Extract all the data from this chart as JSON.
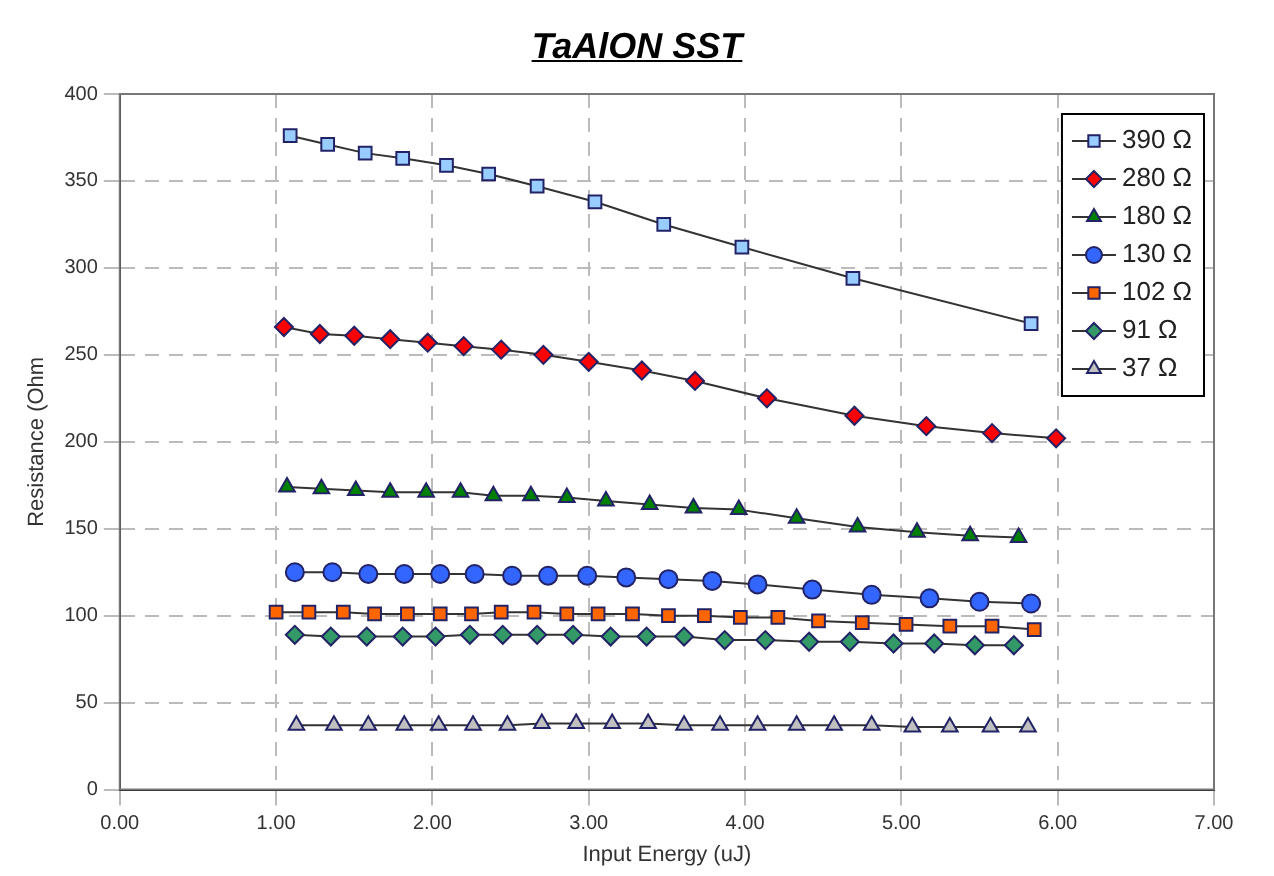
{
  "chart_data": {
    "type": "line",
    "title": "TaAlON SST",
    "xlabel": "Input Energy (uJ)",
    "ylabel": "Resistance (Ohm",
    "xlim": [
      0,
      7
    ],
    "xticks": [
      {
        "value": 0,
        "label": "0.00"
      },
      {
        "value": 1,
        "label": "1.00"
      },
      {
        "value": 2,
        "label": "2.00"
      },
      {
        "value": 3,
        "label": "3.00"
      },
      {
        "value": 4,
        "label": "4.00"
      },
      {
        "value": 5,
        "label": "5.00"
      },
      {
        "value": 6,
        "label": "6.00"
      },
      {
        "value": 7,
        "label": "7.00"
      }
    ],
    "ylim": [
      0,
      400
    ],
    "yticks": [
      0,
      50,
      100,
      150,
      200,
      250,
      300,
      350,
      400
    ],
    "grid": true,
    "legend": "top right",
    "line_style": "solid",
    "series": [
      {
        "name": "390 Ω",
        "color": "#99ccff",
        "marker": "square",
        "x": [
          1.09,
          1.33,
          1.57,
          1.81,
          2.09,
          2.36,
          2.67,
          3.04,
          3.48,
          3.98,
          4.69,
          5.83
        ],
        "values": [
          376,
          371,
          366,
          363,
          359,
          354,
          347,
          338,
          325,
          312,
          294,
          268
        ]
      },
      {
        "name": "280 Ω",
        "color": "#ff0000",
        "marker": "diamond",
        "x": [
          1.05,
          1.28,
          1.5,
          1.73,
          1.97,
          2.2,
          2.44,
          2.71,
          3.0,
          3.34,
          3.68,
          4.14,
          4.7,
          5.16,
          5.58,
          5.99
        ],
        "values": [
          266,
          262,
          261,
          259,
          257,
          255,
          253,
          250,
          246,
          241,
          235,
          225,
          215,
          209,
          205,
          202
        ]
      },
      {
        "name": "180 Ω",
        "color": "#008000",
        "marker": "triangle",
        "x": [
          1.07,
          1.29,
          1.51,
          1.73,
          1.96,
          2.18,
          2.39,
          2.63,
          2.86,
          3.11,
          3.39,
          3.67,
          3.96,
          4.33,
          4.72,
          5.1,
          5.44,
          5.75
        ],
        "values": [
          174,
          173,
          172,
          171,
          171,
          171,
          169,
          169,
          168,
          166,
          164,
          162,
          161,
          156,
          151,
          148,
          146,
          145
        ]
      },
      {
        "name": "130 Ω",
        "color": "#3366ff",
        "marker": "circle",
        "x": [
          1.12,
          1.36,
          1.59,
          1.82,
          2.05,
          2.27,
          2.51,
          2.74,
          2.99,
          3.24,
          3.51,
          3.79,
          4.08,
          4.43,
          4.81,
          5.18,
          5.5,
          5.83
        ],
        "values": [
          125,
          125,
          124,
          124,
          124,
          124,
          123,
          123,
          123,
          122,
          121,
          120,
          118,
          115,
          112,
          110,
          108,
          107
        ]
      },
      {
        "name": "102 Ω",
        "color": "#ff6600",
        "marker": "square",
        "x": [
          1.0,
          1.21,
          1.43,
          1.63,
          1.84,
          2.05,
          2.25,
          2.44,
          2.65,
          2.86,
          3.06,
          3.28,
          3.51,
          3.74,
          3.97,
          4.21,
          4.47,
          4.75,
          5.03,
          5.31,
          5.58,
          5.85
        ],
        "values": [
          102,
          102,
          102,
          101,
          101,
          101,
          101,
          102,
          102,
          101,
          101,
          101,
          100,
          100,
          99,
          99,
          97,
          96,
          95,
          94,
          94,
          92
        ]
      },
      {
        "name": "91 Ω",
        "color": "#339966",
        "marker": "diamond",
        "x": [
          1.12,
          1.35,
          1.58,
          1.81,
          2.02,
          2.24,
          2.45,
          2.67,
          2.9,
          3.14,
          3.37,
          3.61,
          3.87,
          4.13,
          4.41,
          4.67,
          4.95,
          5.21,
          5.47,
          5.72
        ],
        "values": [
          89,
          88,
          88,
          88,
          88,
          89,
          89,
          89,
          89,
          88,
          88,
          88,
          86,
          86,
          85,
          85,
          84,
          84,
          83,
          83
        ]
      },
      {
        "name": "37 Ω",
        "color": "#c0c0c0",
        "marker": "triangle",
        "x": [
          1.13,
          1.37,
          1.59,
          1.82,
          2.04,
          2.26,
          2.48,
          2.7,
          2.92,
          3.15,
          3.38,
          3.61,
          3.84,
          4.08,
          4.33,
          4.57,
          4.81,
          5.07,
          5.31,
          5.57,
          5.81
        ],
        "values": [
          37,
          37,
          37,
          37,
          37,
          37,
          37,
          38,
          38,
          38,
          38,
          37,
          37,
          37,
          37,
          37,
          37,
          36,
          36,
          36,
          36
        ]
      }
    ]
  }
}
